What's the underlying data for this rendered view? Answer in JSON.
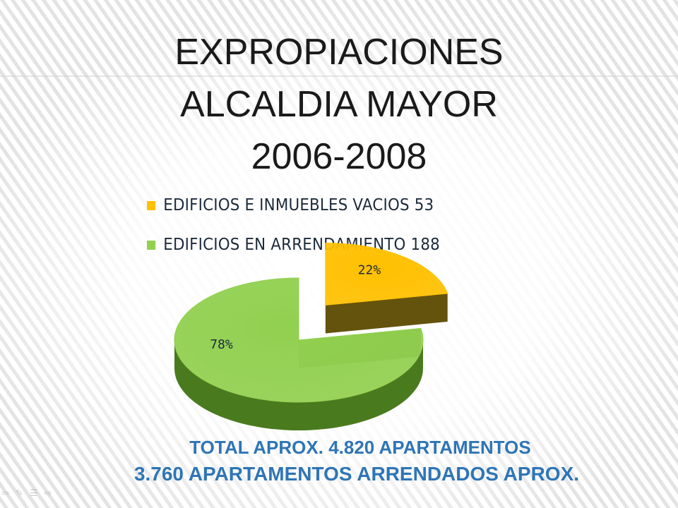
{
  "slide": {
    "title_lines": [
      "EXPROPIACIONES",
      "ALCALDIA MAYOR",
      "2006-2008"
    ],
    "footer_lines": [
      "TOTAL APROX. 4.820 APARTAMENTOS",
      "3.760 APARTAMENTOS ARRENDADOS APROX."
    ],
    "footer_color": "#2e75b6",
    "controls": [
      {
        "icon": "arrow-left-icon",
        "glyph": "⇦"
      },
      {
        "icon": "pen-icon",
        "glyph": "✎"
      },
      {
        "icon": "menu-icon",
        "glyph": "☰"
      },
      {
        "icon": "arrow-right-icon",
        "glyph": "⇨"
      }
    ]
  },
  "chart_data": {
    "type": "pie",
    "title": "",
    "legend_position": "top",
    "categories": [
      "EDIFICIOS E INMUEBLES VACIOS 53",
      "EDIFICIOS EN ARRENDAMIENTO 188"
    ],
    "values": [
      53,
      188
    ],
    "data_labels": [
      "22%",
      "78%"
    ],
    "colors": [
      "#ffc000",
      "#92d050"
    ],
    "side_colors": [
      "#5c4a00",
      "#4a7a1e"
    ],
    "exploded": true,
    "three_d": true
  }
}
